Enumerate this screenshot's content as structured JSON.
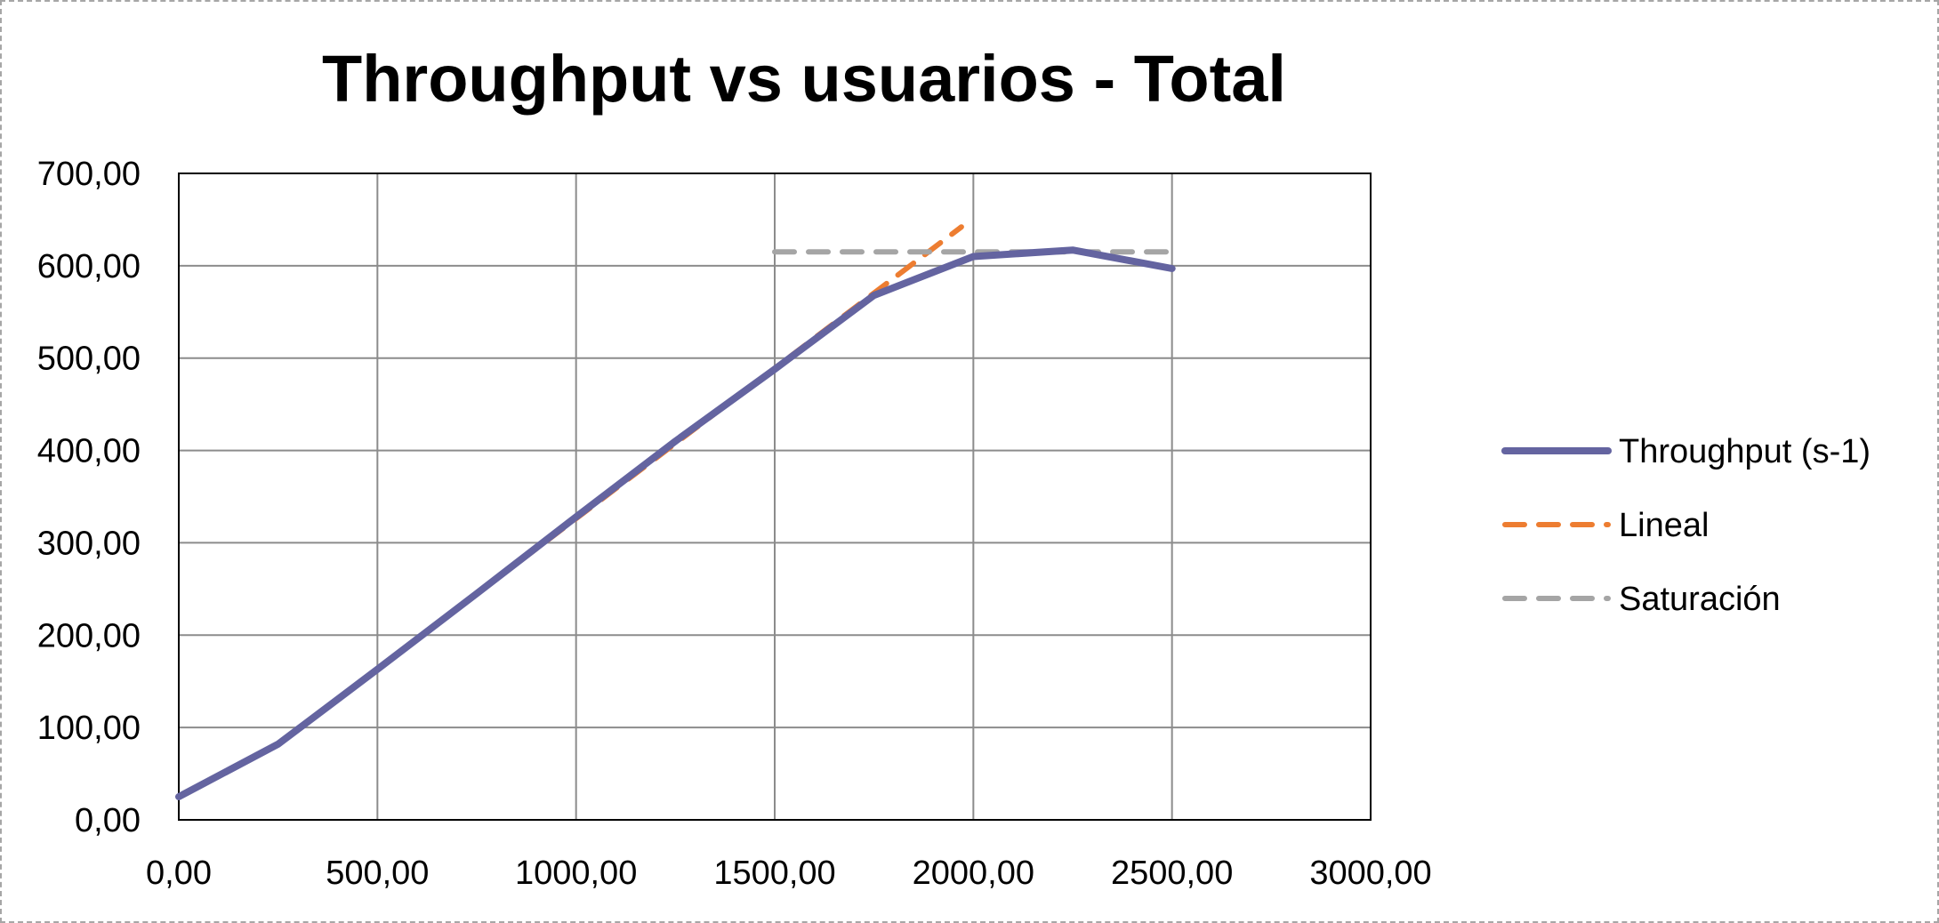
{
  "chart_data": {
    "type": "line",
    "title": "Throughput vs usuarios - Total",
    "xlabel": "",
    "ylabel": "",
    "xlim": [
      0,
      3000
    ],
    "ylim": [
      0,
      700
    ],
    "x_ticks": [
      "0,00",
      "500,00",
      "1000,00",
      "1500,00",
      "2000,00",
      "2500,00",
      "3000,00"
    ],
    "y_ticks": [
      "0,00",
      "100,00",
      "200,00",
      "300,00",
      "400,00",
      "500,00",
      "600,00",
      "700,00"
    ],
    "grid": true,
    "legend_position": "right",
    "series": [
      {
        "name": "Throughput (s-1)",
        "color": "#6464a0",
        "style": "solid",
        "points": [
          [
            0,
            25
          ],
          [
            250,
            82
          ],
          [
            500,
            163
          ],
          [
            750,
            245
          ],
          [
            1000,
            328
          ],
          [
            1250,
            410
          ],
          [
            1500,
            488
          ],
          [
            1750,
            568
          ],
          [
            2000,
            610
          ],
          [
            2250,
            617
          ],
          [
            2500,
            597
          ]
        ]
      },
      {
        "name": "Lineal",
        "color": "#ed7d31",
        "style": "dashed",
        "points": [
          [
            250,
            82
          ],
          [
            1970,
            642
          ]
        ]
      },
      {
        "name": "Saturación",
        "color": "#a5a5a5",
        "style": "dashed",
        "points": [
          [
            1500,
            615
          ],
          [
            2500,
            615
          ]
        ]
      }
    ]
  }
}
